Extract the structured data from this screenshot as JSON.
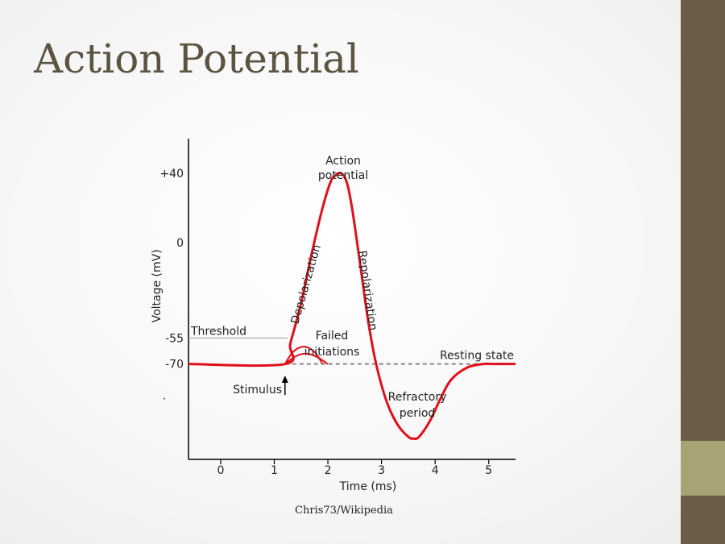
{
  "slide": {
    "title": "Action Potential",
    "credit": "Chris73/Wikipedia"
  },
  "colors": {
    "title": "#5a5440",
    "sidebar": "#6b5e48",
    "sidebar_accent": "#a9a274",
    "curve": "#e0101a",
    "threshold_line": "#999999",
    "resting_dashed": "#888888"
  },
  "chart_data": {
    "type": "line",
    "xlabel": "Time (ms)",
    "ylabel": "Voltage (mV)",
    "xlim": [
      -0.6,
      5.5
    ],
    "ylim": [
      -125,
      60
    ],
    "x_ticks": [
      0,
      1,
      2,
      3,
      4,
      5
    ],
    "y_ticks": [
      {
        "value": 40,
        "label": "+40"
      },
      {
        "value": 0,
        "label": "0"
      },
      {
        "value": -55,
        "label": "-55"
      },
      {
        "value": -70,
        "label": "-70"
      }
    ],
    "extra_y_mark": ".",
    "series": [
      {
        "x": [
          -0.6,
          1.2,
          1.3,
          1.5,
          1.7,
          1.9,
          2.05,
          2.15,
          2.25,
          2.35,
          2.45,
          2.6,
          2.75,
          2.9,
          3.1,
          3.3,
          3.5,
          3.6,
          3.7,
          3.9,
          4.1,
          4.3,
          4.6,
          4.9,
          5.1,
          5.5
        ],
        "y": [
          -70,
          -70,
          -58,
          -35,
          -6,
          20,
          35,
          39,
          40,
          35,
          20,
          -12,
          -45,
          -70,
          -92,
          -105,
          -112,
          -113,
          -112,
          -103,
          -90,
          -79,
          -72,
          -70,
          -70,
          -70
        ]
      },
      {
        "x": [
          1.2,
          1.35,
          1.55,
          1.75,
          1.9
        ],
        "y": [
          -70,
          -63,
          -60,
          -63,
          -70
        ]
      },
      {
        "x": [
          1.2,
          1.4,
          1.6,
          1.8,
          2.0
        ],
        "y": [
          -70,
          -65.5,
          -64,
          -66,
          -70
        ]
      }
    ],
    "threshold": {
      "value": -55,
      "label": "Threshold"
    },
    "resting": {
      "value": -70,
      "label": "Resting state"
    },
    "annotations": {
      "peak": [
        "Action",
        "potential"
      ],
      "depolarization": "Depolarization",
      "repolarization": "Repolarization",
      "failed": [
        "Failed",
        "initiations"
      ],
      "stimulus": "Stimulus",
      "refractory": [
        "Refractory",
        "period"
      ]
    }
  }
}
